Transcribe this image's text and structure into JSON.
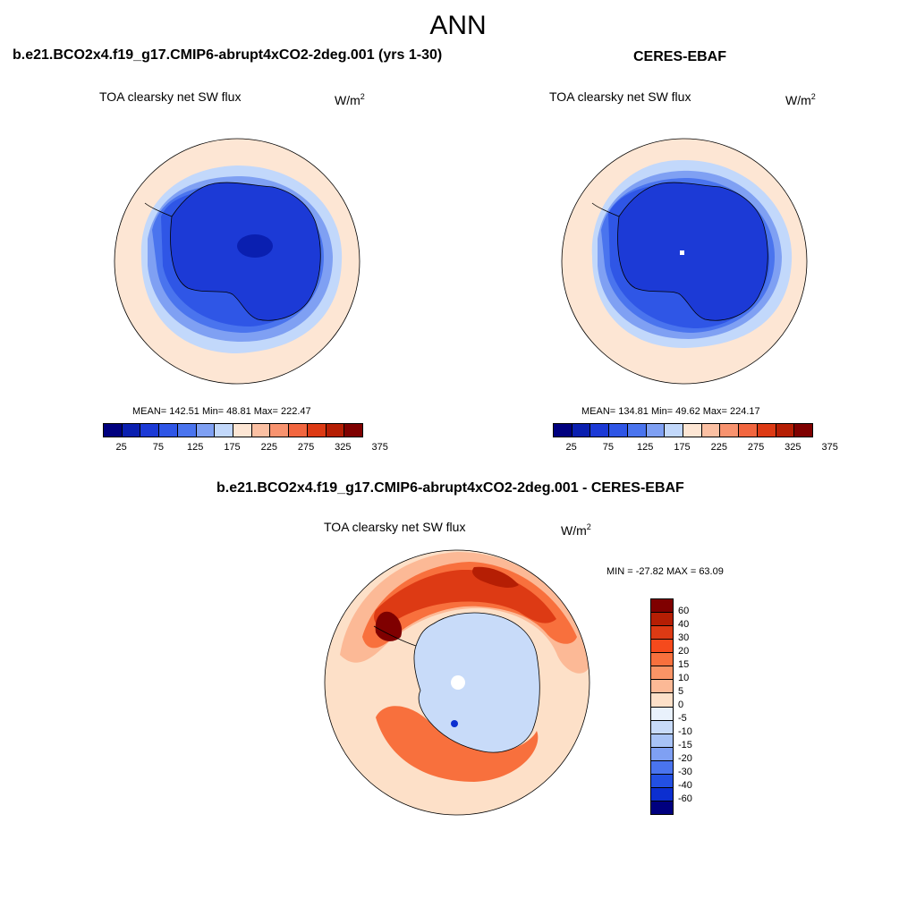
{
  "season": "ANN",
  "panels": [
    {
      "title": "b.e21.BCO2x4.f19_g17.CMIP6-abrupt4xCO2-2deg.001 (yrs 1-30)",
      "variable": "TOA clearsky net SW flux",
      "units_base": "W/m",
      "units_exp": "2",
      "stats": "MEAN= 142.51  Min=  48.81  Max= 222.47",
      "colorbar_ticks": [
        "25",
        "75",
        "125",
        "175",
        "225",
        "275",
        "325",
        "375"
      ]
    },
    {
      "title": "CERES-EBAF",
      "variable": "TOA clearsky net SW flux",
      "units_base": "W/m",
      "units_exp": "2",
      "stats": "MEAN= 134.81  Min=  49.62  Max= 224.17",
      "colorbar_ticks": [
        "25",
        "75",
        "125",
        "175",
        "225",
        "275",
        "325",
        "375"
      ]
    }
  ],
  "diff": {
    "title": "b.e21.BCO2x4.f19_g17.CMIP6-abrupt4xCO2-2deg.001 - CERES-EBAF",
    "variable": "TOA clearsky net SW flux",
    "units_base": "W/m",
    "units_exp": "2",
    "stats": "MIN = -27.82 MAX =  63.09",
    "colorbar_ticks": [
      "60",
      "40",
      "30",
      "20",
      "15",
      "10",
      "5",
      "0",
      "-5",
      "-10",
      "-15",
      "-20",
      "-30",
      "-40",
      "-60"
    ]
  },
  "colors": {
    "abs_palette": [
      "#00007f",
      "#0a1fb0",
      "#1c3ad6",
      "#2f56e6",
      "#4a74ee",
      "#7fa0f3",
      "#c2d8fb",
      "#fde6d4",
      "#fbc0a3",
      "#f8936f",
      "#f2663f",
      "#dd3a14",
      "#b51e04",
      "#7f0000"
    ],
    "diff_palette": [
      "#7f0000",
      "#b51e04",
      "#dd3a14",
      "#f54a1c",
      "#f8703d",
      "#fa9466",
      "#fcb996",
      "#fde0c8",
      "#e9f1fc",
      "#c8dbf9",
      "#a8c3f6",
      "#7fa0f3",
      "#4a74ee",
      "#2350e3",
      "#0c2fd0",
      "#00007f"
    ],
    "land_outline": "#000000"
  }
}
